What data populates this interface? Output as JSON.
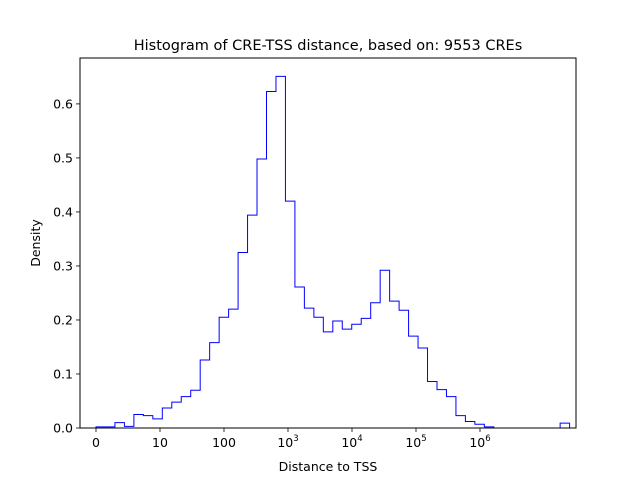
{
  "chart_data": {
    "type": "histogram",
    "title": "Histogram of CRE-TSS distance, based on: 9553 CREs",
    "xlabel": "Distance to TSS",
    "ylabel": "Density",
    "x_scale": "symlog",
    "xlim": [
      -0.25,
      7.5
    ],
    "ylim": [
      0,
      0.685
    ],
    "grid": false,
    "legend": "none",
    "series_color": "#0000ff",
    "xticks": [
      {
        "label": "0",
        "value": 0
      },
      {
        "label": "10",
        "value": 1
      },
      {
        "label": "100",
        "value": 2
      },
      {
        "label": "10",
        "sup": "3",
        "value": 3
      },
      {
        "label": "10",
        "sup": "4",
        "value": 4
      },
      {
        "label": "10",
        "sup": "5",
        "value": 5
      },
      {
        "label": "10",
        "sup": "6",
        "value": 6
      }
    ],
    "yticks": [
      {
        "label": "0.0",
        "value": 0.0
      },
      {
        "label": "0.1",
        "value": 0.1
      },
      {
        "label": "0.2",
        "value": 0.2
      },
      {
        "label": "0.3",
        "value": 0.3
      },
      {
        "label": "0.4",
        "value": 0.4
      },
      {
        "label": "0.5",
        "value": 0.5
      },
      {
        "label": "0.6",
        "value": 0.6
      }
    ],
    "bin_edges": [
      0.0,
      0.148,
      0.296,
      0.444,
      0.592,
      0.74,
      0.888,
      1.036,
      1.184,
      1.332,
      1.48,
      1.628,
      1.776,
      1.924,
      2.072,
      2.22,
      2.368,
      2.516,
      2.664,
      2.812,
      2.96,
      3.108,
      3.256,
      3.404,
      3.552,
      3.7,
      3.848,
      3.996,
      4.144,
      4.292,
      4.44,
      4.588,
      4.736,
      4.884,
      5.032,
      5.18,
      5.328,
      5.476,
      5.624,
      5.772,
      5.92,
      6.068,
      6.216,
      6.364,
      6.512,
      6.66,
      6.808,
      6.956,
      7.104,
      7.252,
      7.4
    ],
    "values": [
      0.002,
      0.002,
      0.01,
      0.003,
      0.025,
      0.023,
      0.017,
      0.037,
      0.048,
      0.058,
      0.07,
      0.126,
      0.158,
      0.205,
      0.22,
      0.325,
      0.394,
      0.498,
      0.623,
      0.651,
      0.42,
      0.261,
      0.222,
      0.205,
      0.178,
      0.198,
      0.183,
      0.192,
      0.203,
      0.232,
      0.292,
      0.235,
      0.218,
      0.17,
      0.148,
      0.086,
      0.071,
      0.058,
      0.023,
      0.012,
      0.007,
      0.002,
      0.0,
      0.0,
      0.0,
      0.0,
      0.0,
      0.0,
      0.0,
      0.009
    ]
  }
}
